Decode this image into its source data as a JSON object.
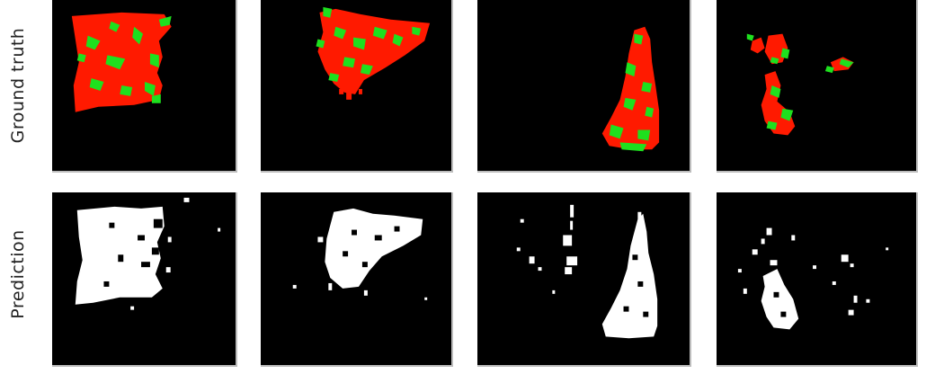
{
  "rows": {
    "ground_truth_label": "Ground truth",
    "prediction_label": "Prediction"
  },
  "colors": {
    "background": "#000000",
    "ground_truth_primary": "#ff1a00",
    "ground_truth_secondary": "#1ee01e",
    "prediction_mask": "#ffffff"
  }
}
